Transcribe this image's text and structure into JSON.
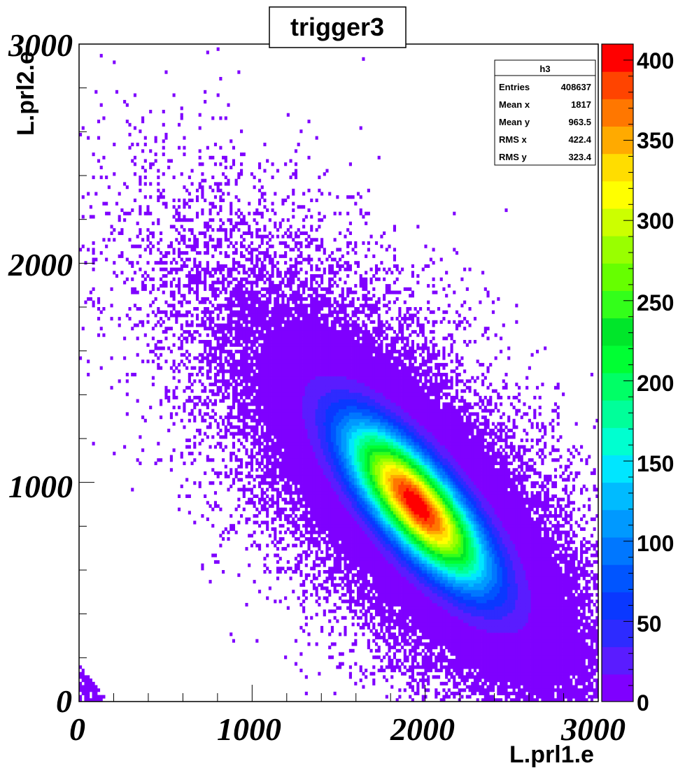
{
  "chart_data": {
    "type": "heatmap",
    "title": "trigger3",
    "xlabel": "L.prl1.e",
    "ylabel": "L.prl2.e",
    "xlim": [
      0,
      3000
    ],
    "ylim": [
      0,
      3000
    ],
    "x_ticks": [
      "0",
      "1000",
      "2000",
      "3000"
    ],
    "y_ticks": [
      "0",
      "1000",
      "2000",
      "3000"
    ],
    "z_range": [
      0,
      410
    ],
    "z_ticks": [
      "0",
      "50",
      "100",
      "150",
      "200",
      "250",
      "300",
      "350",
      "400"
    ],
    "palette": [
      "#7f00ff",
      "#5a1cff",
      "#2d2bff",
      "#0a38ff",
      "#0055ff",
      "#0077ff",
      "#0099ff",
      "#00bbff",
      "#00e6ff",
      "#00ffd0",
      "#00ff9a",
      "#00ff66",
      "#00ff33",
      "#00e62a",
      "#33ff1a",
      "#66ff00",
      "#99ff00",
      "#ccff00",
      "#ffff00",
      "#ffdd00",
      "#ffaa00",
      "#ff7700",
      "#ff4400",
      "#ff0000"
    ],
    "distribution": {
      "peak_center": [
        1950,
        900
      ],
      "peak_value": 410,
      "correlation": "negative"
    },
    "stats": {
      "name": "h3",
      "rows": [
        {
          "label": "Entries",
          "value": "408637"
        },
        {
          "label": "Mean x",
          "value": "1817"
        },
        {
          "label": "Mean y",
          "value": "963.5"
        },
        {
          "label": "RMS x",
          "value": "422.4"
        },
        {
          "label": "RMS y",
          "value": "323.4"
        }
      ]
    }
  }
}
